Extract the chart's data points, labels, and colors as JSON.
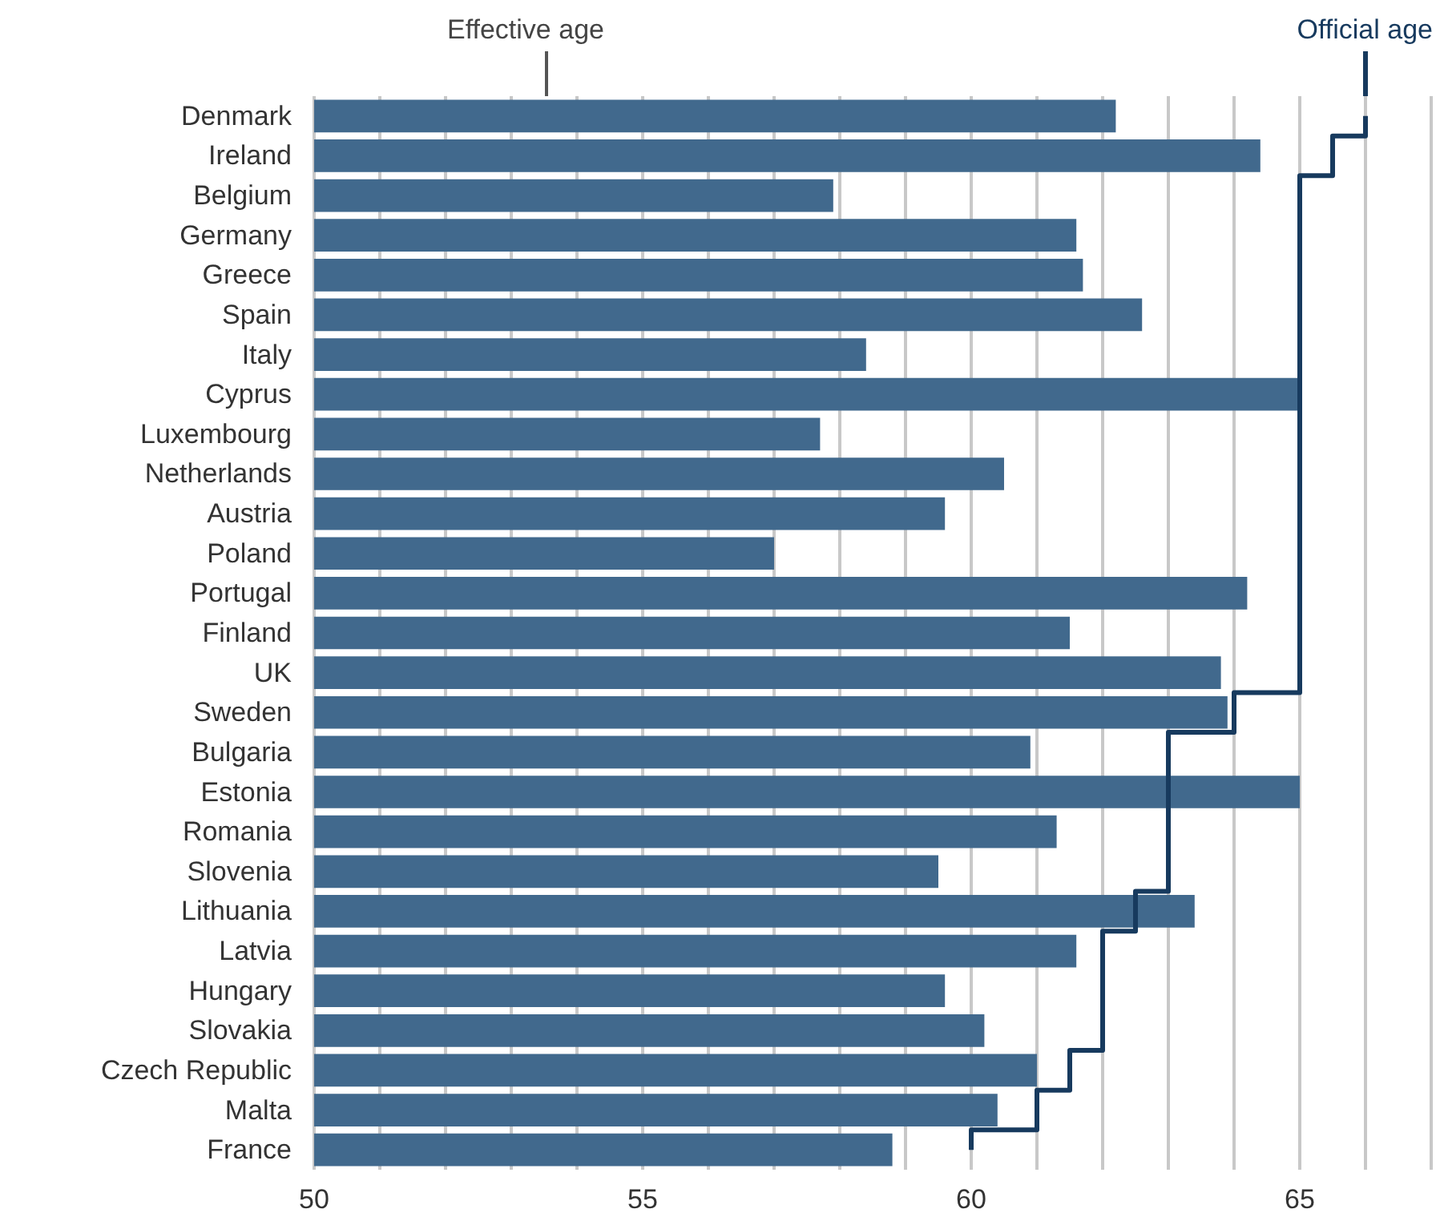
{
  "chart_data": {
    "type": "bar",
    "orientation": "horizontal",
    "categories": [
      "Denmark",
      "Ireland",
      "Belgium",
      "Germany",
      "Greece",
      "Spain",
      "Italy",
      "Cyprus",
      "Luxembourg",
      "Netherlands",
      "Austria",
      "Poland",
      "Portugal",
      "Finland",
      "UK",
      "Sweden",
      "Bulgaria",
      "Estonia",
      "Romania",
      "Slovenia",
      "Lithuania",
      "Latvia",
      "Hungary",
      "Slovakia",
      "Czech Republic",
      "Malta",
      "France"
    ],
    "series": [
      {
        "name": "Effective age",
        "color": "#41698d",
        "values": [
          62.2,
          64.4,
          57.9,
          61.6,
          61.7,
          62.6,
          58.4,
          65.0,
          57.7,
          60.5,
          59.6,
          57.0,
          64.2,
          61.5,
          63.8,
          63.9,
          60.9,
          65.0,
          61.3,
          59.5,
          63.4,
          61.6,
          59.6,
          60.2,
          61.0,
          60.4,
          58.8
        ]
      },
      {
        "name": "Official age",
        "type": "step",
        "color": "#173a5e",
        "values": [
          66,
          65.5,
          65,
          65,
          65,
          65,
          65,
          65,
          65,
          65,
          65,
          65,
          65,
          65,
          65,
          64,
          63,
          63,
          63,
          63,
          62.5,
          62,
          62,
          62,
          61.5,
          61,
          60
        ]
      }
    ],
    "xlim": [
      50,
      67
    ],
    "xticks": [
      50,
      {
        "value": 51,
        "label": null
      },
      {
        "value": 52,
        "label": null
      },
      {
        "value": 53,
        "label": null
      },
      {
        "value": 54,
        "label": null
      },
      55,
      {
        "value": 56,
        "label": null
      },
      {
        "value": 57,
        "label": null
      },
      {
        "value": 58,
        "label": null
      },
      {
        "value": 59,
        "label": null
      },
      60,
      {
        "value": 61,
        "label": null
      },
      {
        "value": 62,
        "label": null
      },
      {
        "value": 63,
        "label": null
      },
      {
        "value": 64,
        "label": null
      },
      65,
      {
        "value": 66,
        "label": null
      },
      {
        "value": 67,
        "label": null
      }
    ],
    "grid": "x",
    "legend": false
  }
}
